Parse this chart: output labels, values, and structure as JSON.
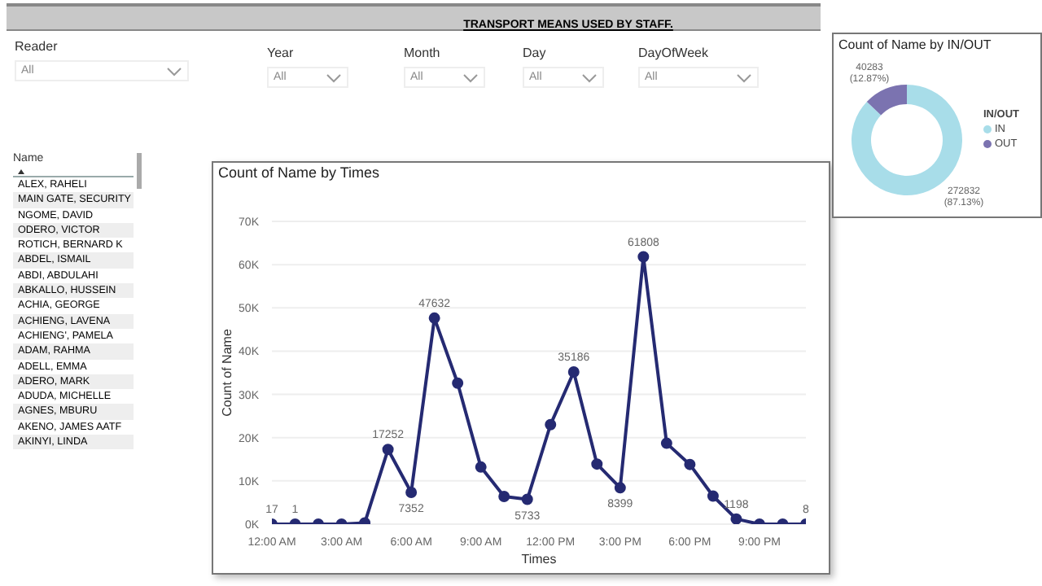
{
  "chart_data": [
    {
      "type": "other",
      "title": "TRANSPORT MEANS USED BY STAFF.",
      "annotations": [
        "Reader",
        "All",
        "Year",
        "All",
        "Month",
        "All",
        "Day",
        "All",
        "DayOfWeek",
        "All"
      ]
    },
    {
      "type": "other",
      "title": "Name",
      "categories": [
        "ALEX, RAHELI",
        "MAIN GATE, SECURITY",
        "NGOME, DAVID",
        "ODERO, VICTOR",
        "ROTICH, BERNARD K",
        "ABDEL, ISMAIL",
        "ABDI, ABDULAHI",
        "ABKALLO, HUSSEIN",
        "ACHIA, GEORGE",
        "ACHIENG, LAVENA",
        "ACHIENG', PAMELA",
        "ADAM, RAHMA",
        "ADELL, EMMA",
        "ADERO, MARK",
        "ADUDA, MICHELLE",
        "AGNES, MBURU",
        "AKENO, JAMES AATF",
        "AKINYI, LINDA"
      ]
    },
    {
      "type": "line",
      "title": "Count of Name by Times",
      "xlabel": "Times",
      "ylabel": "Count of Name",
      "x": [
        0,
        1,
        2,
        3,
        4,
        5,
        6,
        7,
        8,
        9,
        10,
        11,
        12,
        13,
        14,
        15,
        16,
        17,
        18,
        19,
        20,
        21,
        22,
        23
      ],
      "series": [
        {
          "color": "#252a72",
          "values": [
            17,
            1,
            0,
            0,
            300,
            17252,
            7352,
            47632,
            32600,
            13200,
            6400,
            5733,
            23000,
            35186,
            13900,
            8399,
            61808,
            18700,
            13800,
            6500,
            1198,
            0,
            0,
            8
          ],
          "value_labels": [
            "17",
            "1",
            null,
            null,
            null,
            "17252",
            "7352",
            "47632",
            null,
            null,
            null,
            "5733",
            null,
            "35186",
            null,
            "8399",
            "61808",
            null,
            null,
            null,
            "1198",
            null,
            null,
            "8"
          ]
        }
      ],
      "xlim": [
        0,
        23
      ],
      "xticks": [
        {
          "value": 0,
          "label": "12:00 AM"
        },
        {
          "value": 3,
          "label": "3:00 AM"
        },
        {
          "value": 6,
          "label": "6:00 AM"
        },
        {
          "value": 9,
          "label": "9:00 AM"
        },
        {
          "value": 12,
          "label": "12:00 PM"
        },
        {
          "value": 15,
          "label": "3:00 PM"
        },
        {
          "value": 18,
          "label": "6:00 PM"
        },
        {
          "value": 21,
          "label": "9:00 PM"
        }
      ],
      "ylim": [
        0,
        70000
      ],
      "yticks": [
        {
          "value": 0,
          "label": "0K"
        },
        {
          "value": 10000,
          "label": "10K"
        },
        {
          "value": 20000,
          "label": "20K"
        },
        {
          "value": 30000,
          "label": "30K"
        },
        {
          "value": 40000,
          "label": "40K"
        },
        {
          "value": 50000,
          "label": "50K"
        },
        {
          "value": 60000,
          "label": "60K"
        },
        {
          "value": 70000,
          "label": "70K"
        }
      ],
      "grid": "y",
      "marker": "circle",
      "line_style": "solid"
    },
    {
      "type": "donut",
      "title": "Count of Name by IN/OUT",
      "legend_title": "IN/OUT",
      "legend": "right",
      "categories": [
        "IN",
        "OUT"
      ],
      "values": [
        272832,
        40283
      ],
      "colors": [
        "#a8dde9",
        "#7b73b0"
      ],
      "value_labels": [
        "272832 (87.13%)",
        "40283 (12.87%)"
      ]
    }
  ]
}
